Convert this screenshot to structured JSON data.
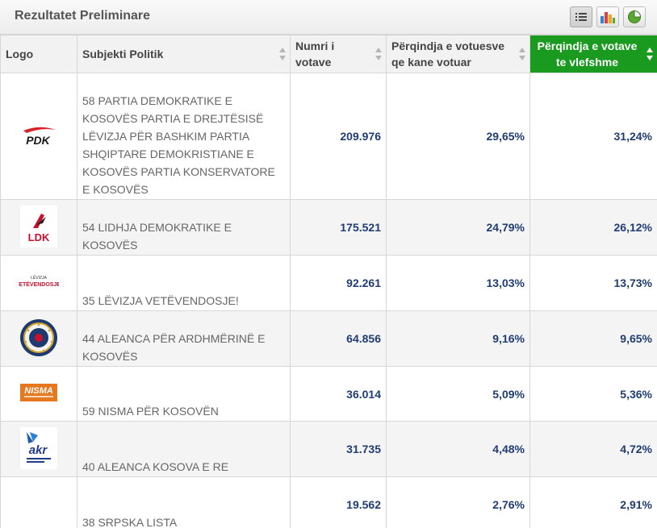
{
  "header": {
    "title": "Rezultatet Preliminare",
    "view_buttons": [
      {
        "icon": "list-icon",
        "active": true
      },
      {
        "icon": "bar-chart-icon",
        "active": false
      },
      {
        "icon": "pie-chart-icon",
        "active": false
      }
    ]
  },
  "table": {
    "columns": {
      "logo": "Logo",
      "subject": "Subjekti Politik",
      "votes": "Numri i votave",
      "pct_voters": "Përqindja e votuesve qe kane votuar",
      "pct_valid": "Përqindja e votave te vlefshme"
    },
    "active_sort_color": "#1a9a1f",
    "rows": [
      {
        "logo_icon": "pdk-logo",
        "logo_text": "PDK",
        "name": "58 PARTIA DEMOKRATIKE E KOSOVËS PARTIA E DREJTËSISË LËVIZJA PËR BASHKIM PARTIA SHQIPTARE DEMOKRISTIANE E KOSOVËS PARTIA KONSERVATORE E KOSOVËS",
        "votes": "209.976",
        "pct_voters": "29,65%",
        "pct_valid": "31,24%"
      },
      {
        "logo_icon": "ldk-logo",
        "logo_text": "LDK",
        "name": "54 LIDHJA DEMOKRATIKE E KOSOVËS",
        "votes": "175.521",
        "pct_voters": "24,79%",
        "pct_valid": "26,12%"
      },
      {
        "logo_icon": "vetevendosje-logo",
        "logo_text": "VETËVENDOSJE!",
        "logo_subtext": "LËVIZJA",
        "name": "35 LËVIZJA VETËVENDOSJE!",
        "votes": "92.261",
        "pct_voters": "13,03%",
        "pct_valid": "13,73%"
      },
      {
        "logo_icon": "aak-seal-logo",
        "name": "44 ALEANCA PËR ARDHMËRINË E KOSOVËS",
        "votes": "64.856",
        "pct_voters": "9,16%",
        "pct_valid": "9,65%"
      },
      {
        "logo_icon": "nisma-logo",
        "logo_text": "NISMA",
        "name": "59 NISMA PËR KOSOVËN",
        "votes": "36.014",
        "pct_voters": "5,09%",
        "pct_valid": "5,36%"
      },
      {
        "logo_icon": "akr-logo",
        "logo_text": "akr",
        "name": "40 ALEANCA KOSOVA E RE",
        "votes": "31.735",
        "pct_voters": "4,48%",
        "pct_valid": "4,72%"
      },
      {
        "logo_icon": "srpska-lista-logo",
        "name": "38 SRPSKA LISTA",
        "votes": "19.562",
        "pct_voters": "2,76%",
        "pct_valid": "2,91%"
      }
    ]
  }
}
